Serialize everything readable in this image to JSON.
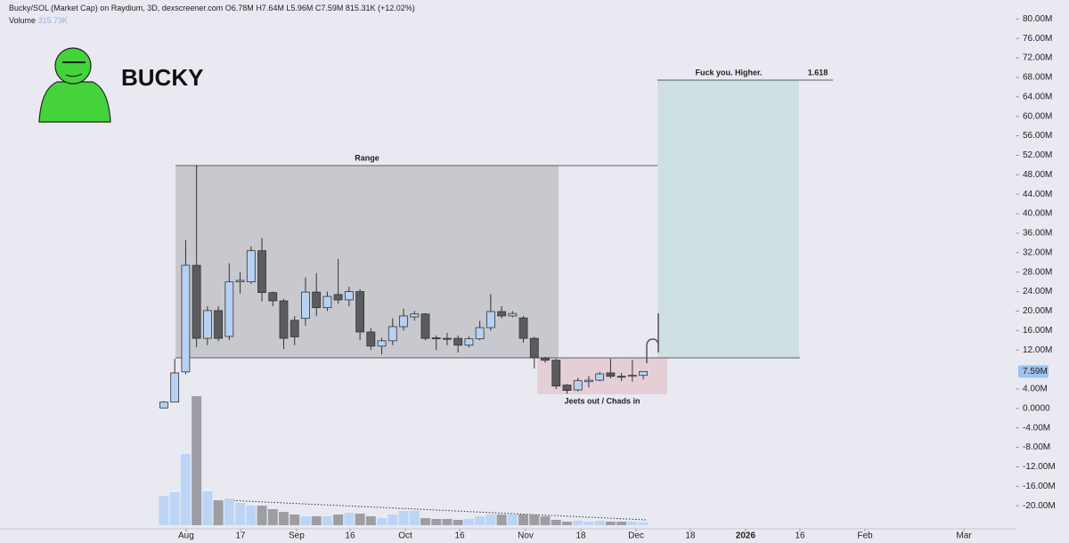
{
  "chart_data": {
    "type": "candlestick",
    "title": "Bucky/SOL (Market Cap) on Raydium, 3D, dexscreener.com",
    "header_ohlc": [
      "O6.78M",
      "H7.64M",
      "L5.96M",
      "C7.59M",
      "815.31K (+12.02%)"
    ],
    "volume_name": "Volume",
    "volume_last_label": "315.73K",
    "logo_text": "BUCKY",
    "open": [
      0.1,
      1.3,
      7.5,
      29.4,
      14.4,
      20.1,
      14.8,
      26,
      26,
      32.4,
      23.8,
      22.1,
      18.1,
      18.5,
      23.9,
      20.7,
      23.4,
      22.3,
      24,
      15.7,
      12.8,
      13.9,
      16.8,
      18.8,
      19.4,
      14.5,
      14.4,
      14.4,
      13,
      14.3,
      16.6,
      19.9,
      19,
      18.6,
      14.4,
      10.4,
      9.9,
      4.8,
      3.8,
      5.5,
      5.8,
      7.3,
      6.6,
      6.6,
      6.78
    ],
    "high": [
      1.5,
      10.2,
      34.6,
      50,
      21,
      21,
      29.8,
      28,
      33.3,
      35,
      24,
      22.5,
      19,
      26.9,
      27.8,
      24,
      30.7,
      25,
      24.5,
      16.5,
      14.5,
      18.5,
      20.5,
      20,
      19.6,
      15,
      15.5,
      15,
      14.8,
      18,
      23.5,
      21,
      20,
      19,
      14.7,
      10.6,
      10.2,
      5,
      6.3,
      6.7,
      7.5,
      10.2,
      7.3,
      10,
      7.64
    ],
    "low": [
      0,
      1.3,
      7,
      12.6,
      13,
      13.8,
      14,
      23.6,
      25.6,
      22,
      21,
      12.2,
      13,
      17,
      19,
      20,
      21.5,
      21,
      14,
      12,
      11.1,
      13,
      16,
      18,
      14,
      12,
      13,
      11.5,
      12.5,
      14,
      16,
      18.5,
      18.7,
      13.5,
      8.2,
      9.4,
      4,
      3,
      3.5,
      4.3,
      5.6,
      6.2,
      5.6,
      5.5,
      5.96
    ],
    "close": [
      1.3,
      7.3,
      29.4,
      14.4,
      20.1,
      14.4,
      26,
      26.3,
      32.4,
      23.8,
      22.1,
      14.4,
      14.7,
      23.9,
      20.7,
      23,
      22.3,
      24,
      15.7,
      12.8,
      13.9,
      16.8,
      19,
      19.4,
      14.4,
      14.3,
      14.2,
      13,
      14.3,
      16.6,
      19.9,
      19,
      19.5,
      14.4,
      10.4,
      9.9,
      4.6,
      3.7,
      5.7,
      5.8,
      7.1,
      6.6,
      6.5,
      6.8,
      7.59
    ],
    "volume": [
      3300,
      3700,
      8000,
      14500,
      3800,
      2800,
      3000,
      2500,
      2200,
      2200,
      1800,
      1500,
      1200,
      1000,
      1000,
      1000,
      1200,
      1400,
      1300,
      1000,
      800,
      1200,
      1600,
      1600,
      800,
      700,
      700,
      600,
      700,
      1000,
      1200,
      1200,
      1200,
      1200,
      1200,
      1000,
      600,
      400,
      500,
      400,
      500,
      400,
      400,
      400,
      315.73
    ],
    "up_color": "#b7d1f3",
    "down_color": "#5c5c60",
    "volume_up_color": "#bcd5f6",
    "volume_down_color": "#9d9ea4",
    "xlim": [
      -15.04,
      78.17
    ],
    "xticks": [
      {
        "value": 2.04,
        "label": "Aug"
      },
      {
        "value": 7.03,
        "label": "17"
      },
      {
        "value": 12.18,
        "label": "Sep"
      },
      {
        "value": 17.09,
        "label": "16"
      },
      {
        "value": 22.16,
        "label": "Oct"
      },
      {
        "value": 27.15,
        "label": "16"
      },
      {
        "value": 33.2,
        "label": "Nov"
      },
      {
        "value": 38.27,
        "label": "18"
      },
      {
        "value": 43.34,
        "label": "Dec"
      },
      {
        "value": 48.32,
        "label": "18"
      },
      {
        "value": 53.39,
        "label": "2026"
      },
      {
        "value": 58.38,
        "label": "16"
      },
      {
        "value": 64.35,
        "label": "Feb"
      },
      {
        "value": 73.43,
        "label": "Mar"
      }
    ],
    "ylim": [
      -24.9,
      83.9
    ],
    "yticks": [
      {
        "value": 80,
        "label": "80.00M"
      },
      {
        "value": 76,
        "label": "76.00M"
      },
      {
        "value": 72,
        "label": "72.00M"
      },
      {
        "value": 68,
        "label": "68.00M"
      },
      {
        "value": 64,
        "label": "64.00M"
      },
      {
        "value": 60,
        "label": "60.00M"
      },
      {
        "value": 56,
        "label": "56.00M"
      },
      {
        "value": 52,
        "label": "52.00M"
      },
      {
        "value": 48,
        "label": "48.00M"
      },
      {
        "value": 44,
        "label": "44.00M"
      },
      {
        "value": 40,
        "label": "40.00M"
      },
      {
        "value": 36,
        "label": "36.00M"
      },
      {
        "value": 32,
        "label": "32.00M"
      },
      {
        "value": 28,
        "label": "28.00M"
      },
      {
        "value": 24,
        "label": "24.00M"
      },
      {
        "value": 20,
        "label": "20.00M"
      },
      {
        "value": 16,
        "label": "16.00M"
      },
      {
        "value": 12,
        "label": "12.00M"
      },
      {
        "value": 4,
        "label": "4.00M"
      },
      {
        "value": 0,
        "label": "0.0000"
      },
      {
        "value": -4,
        "label": "-4.00M"
      },
      {
        "value": -8,
        "label": "-8.00M"
      },
      {
        "value": -12,
        "label": "-12.00M"
      },
      {
        "value": -16,
        "label": "-16.00M"
      },
      {
        "value": -20,
        "label": "-20.00M"
      }
    ],
    "last_price": {
      "value": 7.59,
      "label": "7.59M"
    },
    "annotations": {
      "range": "Range",
      "target": "Fuck you. Higher.",
      "fib": "1.618",
      "zone": "Jeets out / Chads in"
    }
  }
}
